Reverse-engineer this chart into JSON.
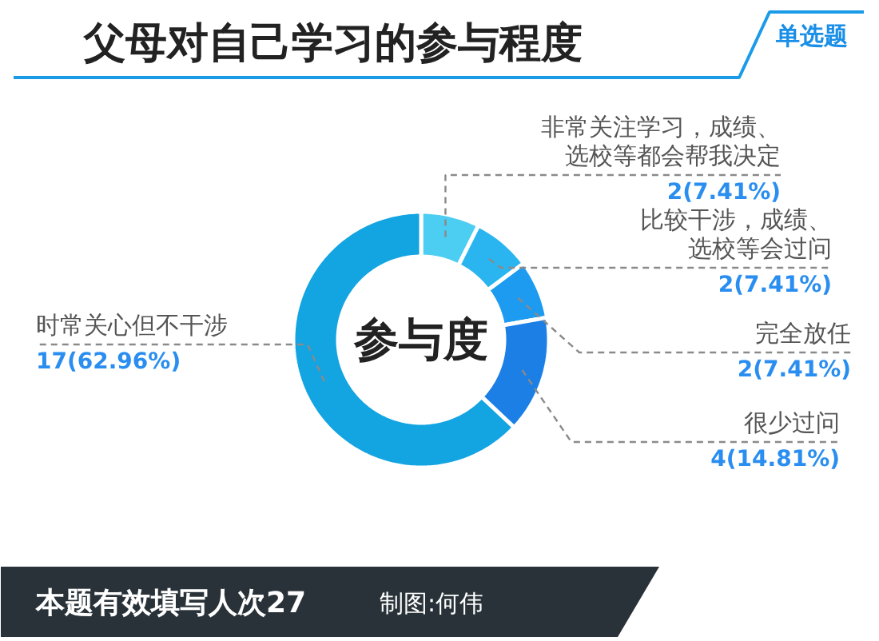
{
  "chart_data": {
    "type": "donut",
    "title": "父母对自己学习的参与程度",
    "subtitle": "单选题",
    "categories": [
      "非常关注学习，成绩、选校等都会帮我决定",
      "比较干涉，成绩、选校等会过问",
      "完全放任",
      "很少过问",
      "时常关心但不干涉"
    ],
    "values": [
      2,
      2,
      2,
      4,
      17
    ],
    "colors": [
      "#4ccdf2",
      "#2bb5f0",
      "#1d9bf0",
      "#1b7fe6",
      "#13a4e2"
    ],
    "value_labels": [
      "2(7.41%)",
      "2(7.41%)",
      "2(7.41%)",
      "4(14.81%)",
      "17(62.96%)"
    ],
    "annotations": [
      "参与度",
      "本题有效填写人次27",
      "制图:何伟"
    ]
  }
}
